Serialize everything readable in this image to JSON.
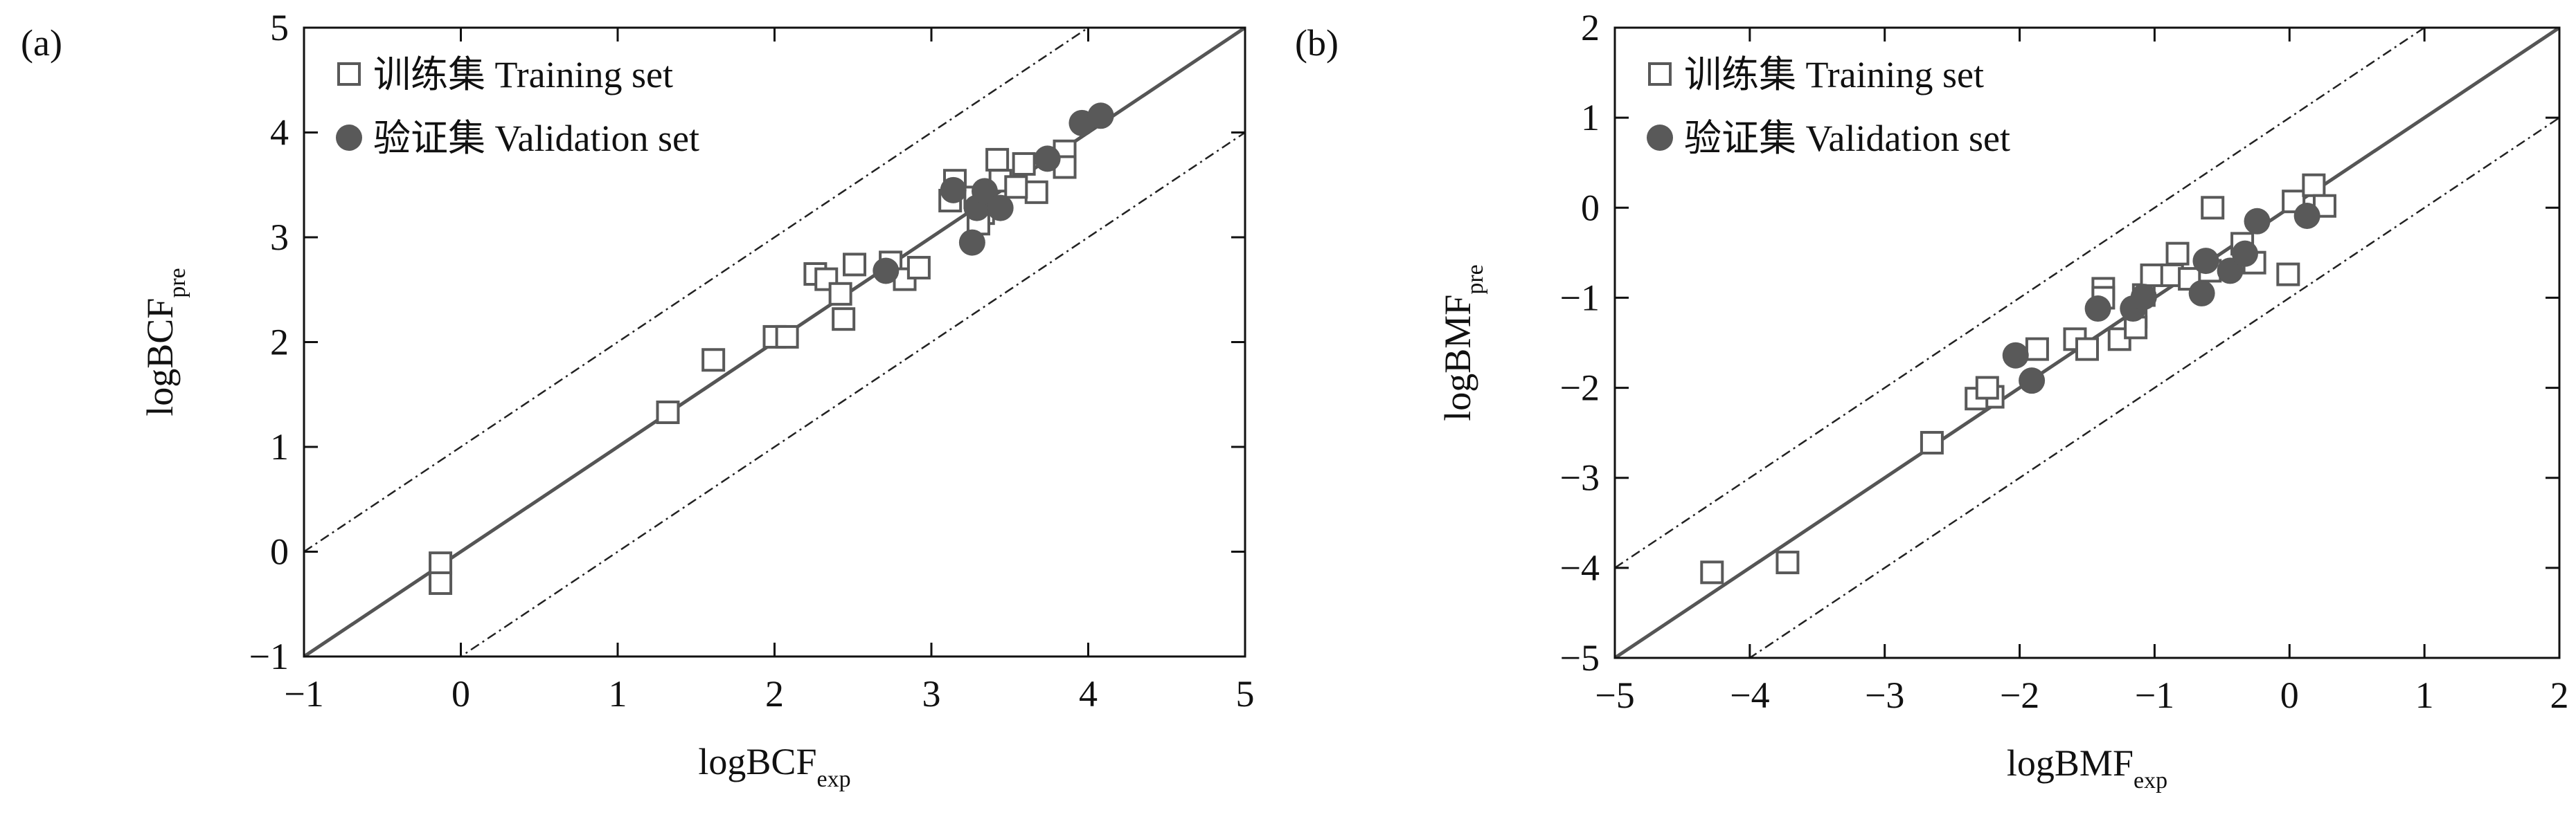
{
  "chart_data": [
    {
      "type": "scatter",
      "panel_label": "(a)",
      "xlabel": "logBCF",
      "xlabel_sub": "exp",
      "ylabel": "logBCF",
      "ylabel_sub": "pre",
      "xlim": [
        -1,
        5
      ],
      "ylim": [
        -1,
        5
      ],
      "xticks": [
        {
          "value": -1,
          "label": "−1"
        },
        0,
        1,
        2,
        3,
        4,
        5
      ],
      "yticks": [
        {
          "value": -1,
          "label": "−1"
        },
        0,
        1,
        2,
        3,
        4,
        5
      ],
      "legend": "upper left",
      "fit_lines": [
        {
          "slope": 1,
          "intercept": 0,
          "style": "solid"
        },
        {
          "slope": 1,
          "intercept": 1,
          "style": "dashdot"
        },
        {
          "slope": 1,
          "intercept": -1,
          "style": "dashdot"
        }
      ],
      "series": [
        {
          "name": "训练集 Training set",
          "color": "#595959",
          "marker": "square",
          "x": [
            -0.13,
            -0.13,
            1.32,
            1.61,
            2.0,
            2.08,
            2.26,
            2.33,
            2.42,
            2.44,
            2.51,
            2.74,
            2.83,
            2.92,
            3.15,
            3.12,
            3.28,
            3.33,
            3.42,
            3.44,
            3.59,
            3.67,
            3.54,
            3.85,
            3.85,
            3.3
          ],
          "values": [
            -0.11,
            -0.3,
            1.33,
            1.83,
            2.05,
            2.05,
            2.65,
            2.6,
            2.46,
            2.22,
            2.74,
            2.76,
            2.6,
            2.71,
            3.54,
            3.35,
            3.38,
            3.23,
            3.74,
            3.54,
            3.7,
            3.43,
            3.48,
            3.82,
            3.67,
            3.13
          ]
        },
        {
          "name": "验证集 Validation set",
          "color": "#595959",
          "marker": "circle",
          "x": [
            2.71,
            3.14,
            3.26,
            3.29,
            3.34,
            3.44,
            3.74,
            3.96,
            4.08
          ],
          "values": [
            2.68,
            3.45,
            2.95,
            3.28,
            3.44,
            3.28,
            3.75,
            4.09,
            4.16
          ]
        }
      ]
    },
    {
      "type": "scatter",
      "panel_label": "(b)",
      "xlabel": "logBMF",
      "xlabel_sub": "exp",
      "ylabel": "logBMF",
      "ylabel_sub": "pre",
      "xlim": [
        -5,
        2
      ],
      "ylim": [
        -5,
        2
      ],
      "xticks": [
        {
          "value": -5,
          "label": "−5"
        },
        {
          "value": -4,
          "label": "−4"
        },
        {
          "value": -3,
          "label": "−3"
        },
        {
          "value": -2,
          "label": "−2"
        },
        {
          "value": -1,
          "label": "−1"
        },
        0,
        1,
        2
      ],
      "yticks": [
        {
          "value": -5,
          "label": "−5"
        },
        {
          "value": -4,
          "label": "−4"
        },
        {
          "value": -3,
          "label": "−3"
        },
        {
          "value": -2,
          "label": "−2"
        },
        {
          "value": -1,
          "label": "−1"
        },
        0,
        1,
        2
      ],
      "legend": "upper left",
      "fit_lines": [
        {
          "slope": 1,
          "intercept": 0,
          "style": "solid"
        },
        {
          "slope": 1,
          "intercept": 1,
          "style": "dashdot"
        },
        {
          "slope": 1,
          "intercept": -1,
          "style": "dashdot"
        }
      ],
      "series": [
        {
          "name": "训练集 Training set",
          "color": "#595959",
          "marker": "square",
          "x": [
            -4.28,
            -3.72,
            -2.65,
            -2.2,
            -2.32,
            -2.24,
            -1.87,
            -1.59,
            -1.5,
            -1.38,
            -1.26,
            -1.14,
            -1.08,
            -1.02,
            -0.87,
            -0.83,
            -0.74,
            -0.59,
            -0.57,
            -0.35,
            -0.26,
            -0.01,
            0.03,
            0.18,
            0.26,
            -1.14,
            -1.38
          ],
          "values": [
            -4.05,
            -3.94,
            -2.61,
            -2.1,
            -2.12,
            -2.0,
            -1.57,
            -1.46,
            -1.57,
            -0.9,
            -1.46,
            -1.21,
            -0.97,
            -0.75,
            -0.75,
            -0.51,
            -0.79,
            -0.7,
            0.0,
            -0.4,
            -0.61,
            -0.74,
            0.07,
            0.25,
            0.02,
            -1.33,
            -1.0
          ]
        },
        {
          "name": "验证集 Validation set",
          "color": "#595959",
          "marker": "circle",
          "x": [
            -2.03,
            -1.91,
            -1.42,
            -1.16,
            -1.08,
            -0.65,
            -0.62,
            -0.44,
            -0.33,
            -0.24,
            0.13
          ],
          "values": [
            -1.64,
            -1.92,
            -1.12,
            -1.12,
            -0.99,
            -0.95,
            -0.59,
            -0.7,
            -0.51,
            -0.15,
            -0.09
          ]
        }
      ]
    }
  ]
}
